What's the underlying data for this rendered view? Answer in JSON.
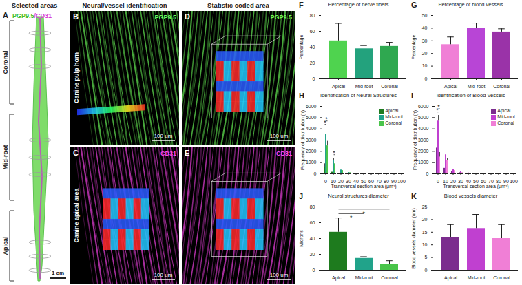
{
  "figure_panels": [
    {
      "panel": "A",
      "header": "Selected areas",
      "stain": [
        "PGP9.5",
        "/CD31"
      ],
      "regions": [
        "Coronal",
        "Mid-root",
        "Apical"
      ],
      "scale_bar": "1 cm"
    },
    {
      "panel": "B",
      "header": "Neural/vessel identification",
      "stain": "PGP9.5",
      "side_label": "Canine pulp horn",
      "scale_bar": "100 um"
    },
    {
      "panel": "C",
      "stain": "CD31",
      "side_label": "Canine apical area",
      "scale_bar": "100 um"
    },
    {
      "panel": "D",
      "header": "Statistic coded area",
      "stain": "PGP9.5",
      "scale_bar": "100 um"
    },
    {
      "panel": "E",
      "stain": "CD31",
      "scale_bar": "100 um"
    }
  ],
  "chart_data": [
    {
      "type": "bar",
      "panel": "F",
      "title": "Percentage of nerve fibers",
      "y_label": "Percentage",
      "categories": [
        "Apical",
        "Mid-root",
        "Coronal"
      ],
      "values": [
        48,
        38,
        41
      ],
      "errors": [
        22,
        4,
        5
      ],
      "colors": [
        "#4fd34f",
        "#23a27d",
        "#2fa850"
      ],
      "ylim": [
        0,
        80
      ],
      "yticks": [
        0,
        20,
        40,
        60,
        80
      ]
    },
    {
      "type": "bar",
      "panel": "G",
      "title": "Percentage of blood vessels",
      "y_label": "Percentage",
      "categories": [
        "Apical",
        "Mid-root",
        "Coronal"
      ],
      "values": [
        27,
        40,
        37
      ],
      "errors": [
        6,
        4,
        2.5
      ],
      "colors": [
        "#f07fd6",
        "#b845d6",
        "#9a33a8"
      ],
      "ylim": [
        0,
        50
      ],
      "yticks": [
        0,
        10,
        20,
        30,
        40,
        50
      ]
    },
    {
      "type": "grouped_bar",
      "panel": "H",
      "title": "Identification of Neural Structures",
      "x_label": "Transversal section area (µm²)",
      "y_label": "Frequency of distribution (n)",
      "x": [
        0,
        10,
        20,
        30,
        40,
        50,
        60,
        70,
        80,
        90,
        100
      ],
      "series": [
        {
          "name": "Apical",
          "color": "#1e7b1e",
          "values": [
            600,
            150,
            60,
            30,
            10,
            5,
            0,
            0,
            0,
            0,
            0
          ],
          "errors": [
            300,
            null,
            null,
            null,
            null,
            null,
            null,
            null,
            null,
            null,
            null
          ]
        },
        {
          "name": "Mid-root",
          "color": "#21a38a",
          "values": [
            3500,
            1200,
            350,
            120,
            60,
            30,
            20,
            10,
            5,
            5,
            0
          ],
          "errors": [
            600,
            200,
            null,
            null,
            null,
            null,
            null,
            null,
            null,
            null,
            null
          ]
        },
        {
          "name": "Coronal",
          "color": "#49c44a",
          "values": [
            2500,
            900,
            300,
            100,
            50,
            30,
            15,
            10,
            5,
            5,
            0
          ],
          "errors": [
            400,
            150,
            null,
            null,
            null,
            null,
            null,
            null,
            null,
            null,
            null
          ]
        }
      ],
      "annotations": [
        {
          "text": "*",
          "x": 0,
          "between": [
            "Apical",
            "Mid-root"
          ]
        },
        {
          "text": "*",
          "x": 0,
          "between": [
            "Mid-root",
            "Coronal"
          ]
        },
        {
          "text": "*",
          "x": 10,
          "between": [
            "Mid-root",
            "Coronal"
          ]
        }
      ],
      "legend": "top-right",
      "ylim": [
        0,
        6000
      ],
      "yticks": [
        0,
        1000,
        2000,
        3000,
        4000,
        5000,
        6000
      ],
      "xticks": [
        0,
        10,
        20,
        30,
        40,
        50,
        60,
        70,
        80,
        90,
        100
      ]
    },
    {
      "type": "grouped_bar",
      "panel": "I",
      "title": "Identification of Blood Vessels",
      "x_label": "Transversal section area (µm²)",
      "y_label": "Frequency of distribution (n)",
      "x": [
        0,
        10,
        20,
        30,
        40,
        50,
        60,
        70,
        80,
        90,
        100
      ],
      "series": [
        {
          "name": "Apical",
          "color": "#7b2d8e",
          "values": [
            2300,
            500,
            200,
            100,
            50,
            20,
            10,
            5,
            0,
            0,
            0
          ],
          "errors": [
            1500,
            null,
            null,
            null,
            null,
            null,
            null,
            null,
            null,
            null,
            null
          ]
        },
        {
          "name": "Mid-root",
          "color": "#c040d0",
          "values": [
            4700,
            1700,
            400,
            200,
            80,
            40,
            20,
            10,
            5,
            0,
            0
          ],
          "errors": [
            500,
            300,
            null,
            null,
            null,
            null,
            null,
            null,
            null,
            null,
            null
          ]
        },
        {
          "name": "Coronal",
          "color": "#f07fd6",
          "values": [
            1500,
            1200,
            300,
            100,
            50,
            20,
            10,
            5,
            0,
            0,
            0
          ],
          "errors": [
            400,
            200,
            null,
            null,
            null,
            null,
            null,
            null,
            null,
            null,
            null
          ]
        }
      ],
      "annotations": [
        {
          "text": "*",
          "x": 0,
          "between": [
            "Apical",
            "Mid-root"
          ]
        },
        {
          "text": "*",
          "x": 0,
          "between": [
            "Mid-root",
            "Coronal"
          ]
        }
      ],
      "legend": "top-right",
      "ylim": [
        0,
        6000
      ],
      "yticks": [
        0,
        1000,
        2000,
        3000,
        4000,
        5000,
        6000
      ],
      "xticks": [
        0,
        10,
        20,
        30,
        40,
        50,
        60,
        70,
        80,
        90,
        100
      ]
    },
    {
      "type": "bar",
      "panel": "J",
      "title": "Neural structures diameter",
      "y_label": "Microns",
      "categories": [
        "Apical",
        "Mid-root",
        "Coronal"
      ],
      "values": [
        48,
        15,
        7
      ],
      "errors": [
        18,
        2,
        5
      ],
      "colors": [
        "#1e7b1e",
        "#21a38a",
        "#49c44a"
      ],
      "annotations": [
        {
          "text": "*",
          "between": [
            "Apical",
            "Mid-root"
          ]
        },
        {
          "text": "*",
          "between": [
            "Apical",
            "Coronal"
          ]
        }
      ],
      "ylim": [
        0,
        80
      ],
      "yticks": [
        0,
        20,
        40,
        60,
        80
      ]
    },
    {
      "type": "bar",
      "panel": "K",
      "title": "Blood vessels diameter",
      "y_label": "Blood vessels diameter (um)",
      "categories": [
        "Apical",
        "Mid-root",
        "Coronal"
      ],
      "values": [
        13,
        16.5,
        12.5
      ],
      "errors": [
        5,
        5.5,
        5.5
      ],
      "colors": [
        "#7b2d8e",
        "#c040d0",
        "#f07fd6"
      ],
      "ylim": [
        0,
        25
      ],
      "yticks": [
        0,
        5,
        10,
        15,
        20,
        25
      ]
    }
  ]
}
